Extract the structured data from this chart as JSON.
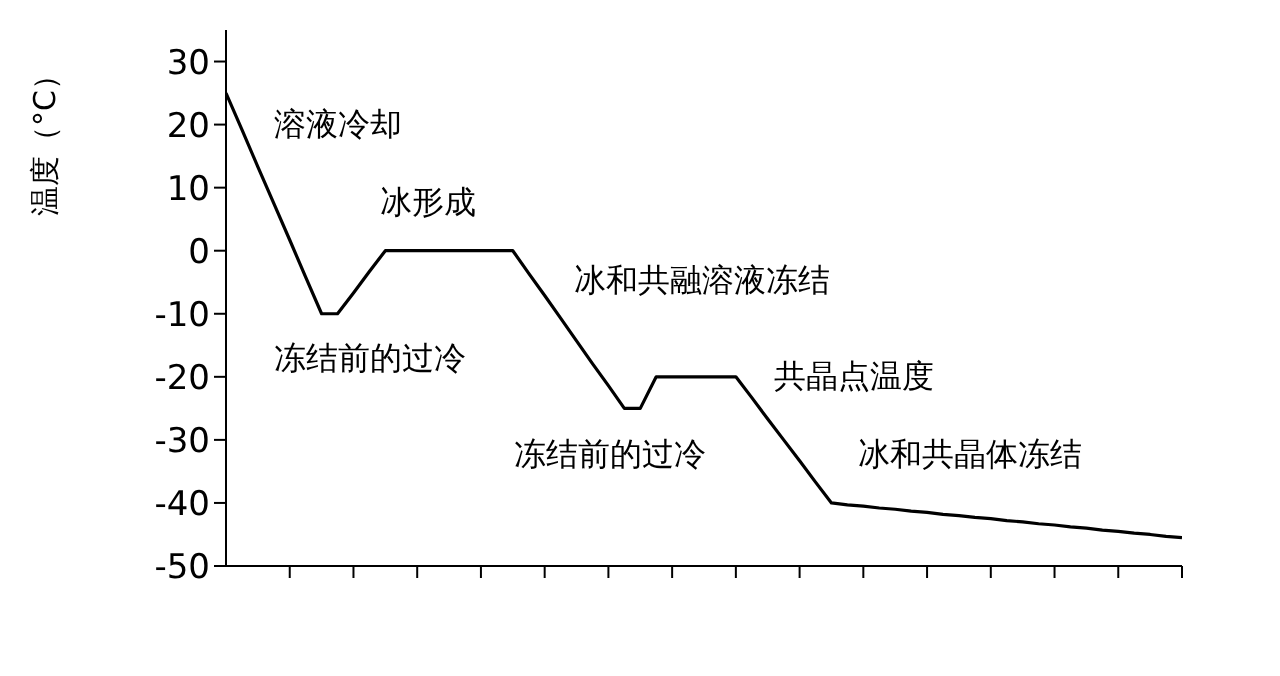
{
  "chart_data": {
    "type": "line",
    "ylabel": "温度（°C）",
    "categories": [
      null,
      null,
      null,
      null,
      null,
      null,
      null,
      null,
      null,
      null,
      null,
      null,
      null,
      null,
      null,
      null,
      null,
      null,
      null,
      null,
      null,
      null,
      null,
      null,
      null,
      null,
      null,
      null,
      null,
      null,
      null,
      null,
      null,
      null,
      null,
      null,
      null,
      null,
      null,
      null,
      null,
      null,
      null,
      null,
      null,
      null,
      null,
      null,
      null,
      null,
      null,
      null,
      null,
      null,
      null,
      null,
      null,
      null,
      null,
      null,
      null
    ],
    "series": [
      {
        "color": "#000000",
        "values": [
          25,
          19.2,
          13.3,
          7.5,
          1.7,
          -4.2,
          -10,
          -10,
          -6.7,
          -3.3,
          0,
          0,
          0,
          0,
          0,
          0,
          0,
          0,
          0,
          -3.6,
          -7.1,
          -10.7,
          -14.3,
          -17.9,
          -21.4,
          -25,
          -25,
          -20,
          -20,
          -20,
          -20,
          -20,
          -20,
          -23.3,
          -26.7,
          -30,
          -33.3,
          -36.7,
          -40,
          -40.3,
          -40.5,
          -40.8,
          -41,
          -41.3,
          -41.5,
          -41.8,
          -42,
          -42.3,
          -42.5,
          -42.8,
          -43,
          -43.3,
          -43.5,
          -43.8,
          -44,
          -44.3,
          -44.5,
          -44.8,
          -45,
          -45.3,
          -45.5
        ]
      }
    ],
    "ylim": [
      -50,
      35
    ],
    "yticks": [
      -50,
      -40,
      -30,
      -20,
      -10,
      0,
      10,
      20,
      30
    ],
    "tick_labels": "y",
    "grid": false,
    "legend": false,
    "marker": "none",
    "line_style": "solid",
    "annotations": [
      "溶液冷却",
      "冰形成",
      "冰和共融溶液冻结",
      "冻结前的过冷",
      "冻结前的过冷",
      "共晶点温度",
      "冰和共晶体冻结"
    ]
  }
}
